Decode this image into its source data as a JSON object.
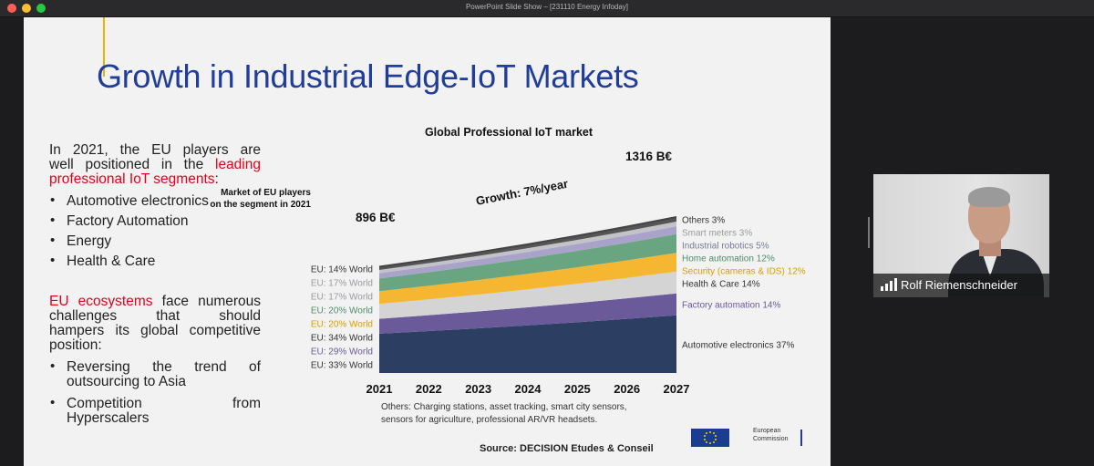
{
  "window": {
    "title": "PowerPoint Slide Show – [231110 Energy Infoday]"
  },
  "slide": {
    "title": "Growth in Industrial Edge-IoT Markets",
    "intro": {
      "line1": "In 2021, the EU players are",
      "line2": "well positioned in the",
      "line2_red": "leading",
      "line3_red": "professional IoT segments",
      "line3_end": ":"
    },
    "segments": [
      "Automotive electronics",
      "Factory Automation",
      "Energy",
      "Health & Care"
    ],
    "challenges": {
      "line1_red": "EU ecosystems",
      "line1_rest": "face numerous",
      "line2": "challenges that should",
      "line3": "hampers its global competitive",
      "line4": "position:"
    },
    "challenge_items": [
      {
        "line1": "Reversing the trend of",
        "line2": "outsourcing to Asia"
      },
      {
        "line1": "Competition from",
        "line2": "Hyperscalers"
      }
    ],
    "footnote_line1": "Others: Charging stations, asset tracking, smart city sensors,",
    "footnote_line2": "sensors for agriculture, professional AR/VR headsets.",
    "source": "Source: DECISION Etudes & Conseil",
    "ec_logo": {
      "line1": "European",
      "line2": "Commission"
    }
  },
  "chart_data": {
    "type": "area",
    "title": "Global Professional IoT market",
    "x": [
      "2021",
      "2022",
      "2023",
      "2024",
      "2025",
      "2026",
      "2027"
    ],
    "total_start_label": "896 B€",
    "total_end_label": "1316 B€",
    "total_start": 896,
    "total_end": 1316,
    "growth_label": "Growth: 7%/year",
    "eu_header_line1": "Market of EU players",
    "eu_header_line2": "on the segment in 2021",
    "series": [
      {
        "name": "Automotive electronics",
        "share": 37,
        "label": "Automotive electronics 37%",
        "eu": "EU: 33% World",
        "color": "#2c3f63"
      },
      {
        "name": "Factory automation",
        "share": 14,
        "label": "Factory automation 14%",
        "eu": "EU: 29% World",
        "color": "#6a5a9a"
      },
      {
        "name": "Health & Care",
        "share": 14,
        "label": "Health & Care 14%",
        "eu": "EU: 34% World",
        "color": "#d4d4d4"
      },
      {
        "name": "Security (cameras & IDS)",
        "share": 12,
        "label": "Security (cameras & IDS) 12%",
        "eu": "EU: 20% World",
        "color": "#f5b731"
      },
      {
        "name": "Home automation",
        "share": 12,
        "label": "Home automation 12%",
        "eu": "EU: 20% World",
        "color": "#6aa582"
      },
      {
        "name": "Industrial robotics",
        "share": 5,
        "label": "Industrial robotics 5%",
        "eu": "EU: 17% World",
        "color": "#a9a3c9"
      },
      {
        "name": "Smart meters",
        "share": 3,
        "label": "Smart meters 3%",
        "eu": "EU: 17% World",
        "color": "#c2c2c8"
      },
      {
        "name": "Others",
        "share": 3,
        "label": "Others 3%",
        "eu": "EU: 14% World",
        "color": "#555555"
      }
    ],
    "label_colors": [
      "#333333",
      "#6a5a9a",
      "#333333",
      "#d8a000",
      "#4e8d69",
      "#7a7a99",
      "#9a9aa0",
      "#333333"
    ],
    "eu_colors": [
      "#333333",
      "#6a5a9a",
      "#333333",
      "#d8a000",
      "#4e8d69",
      "#9a9aa0",
      "#9a9aa0",
      "#333333"
    ]
  },
  "participant": {
    "name": "Rolf Riemenschneider"
  }
}
